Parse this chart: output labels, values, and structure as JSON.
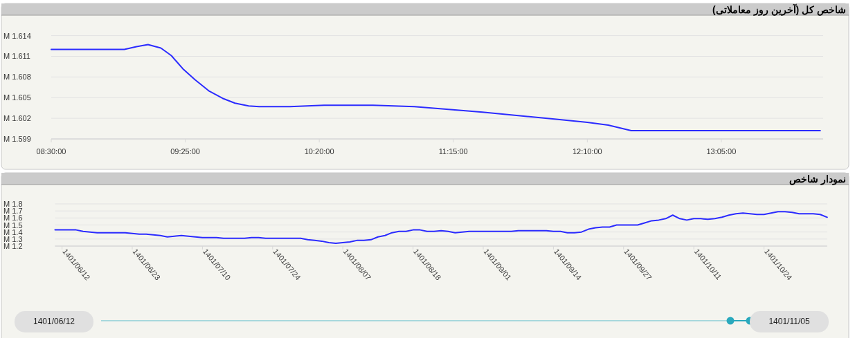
{
  "chart_data": [
    {
      "type": "line",
      "title": "شاخص کل (آخرین روز معاملاتی)",
      "x": [
        8.5,
        9.0,
        9.083,
        9.162,
        9.25,
        9.322,
        9.4,
        9.483,
        9.577,
        9.672,
        9.757,
        9.85,
        9.922,
        10.133,
        10.367,
        10.7,
        10.983,
        11.217,
        11.45,
        11.695,
        11.93,
        12.167,
        12.31,
        12.467,
        13.76
      ],
      "series": [
        {
          "color": "#2b2bff",
          "values": [
            1.612,
            1.612,
            1.6124,
            1.6127,
            1.6122,
            1.6111,
            1.6092,
            1.6076,
            1.606,
            1.6049,
            1.6042,
            1.6038,
            1.6037,
            1.6037,
            1.6039,
            1.6039,
            1.6037,
            1.6033,
            1.6029,
            1.6024,
            1.6019,
            1.6014,
            1.601,
            1.6002,
            1.6002
          ]
        }
      ],
      "xlim": [
        8.5,
        13.78
      ],
      "xticks": [
        {
          "value": 8.5,
          "label": "08:30:00"
        },
        {
          "value": 9.4167,
          "label": "09:25:00"
        },
        {
          "value": 10.3333,
          "label": "10:20:00"
        },
        {
          "value": 11.25,
          "label": "11:15:00"
        },
        {
          "value": 12.1667,
          "label": "12:10:00"
        },
        {
          "value": 13.0833,
          "label": "13:05:00"
        }
      ],
      "ylim": [
        1.599,
        1.614
      ],
      "yticks": [
        {
          "value": 1.599,
          "label": "1.599 M"
        },
        {
          "value": 1.602,
          "label": "1.602 M"
        },
        {
          "value": 1.605,
          "label": "1.605 M"
        },
        {
          "value": 1.608,
          "label": "1.608 M"
        },
        {
          "value": 1.611,
          "label": "1.611 M"
        },
        {
          "value": 1.614,
          "label": "1.614 M"
        }
      ],
      "grid": "y"
    },
    {
      "type": "line",
      "title": "نمودار شاخص",
      "categories": [
        null,
        "1401/06/12",
        null,
        null,
        null,
        null,
        null,
        null,
        null,
        null,
        null,
        "1401/06/23",
        null,
        null,
        null,
        null,
        null,
        null,
        null,
        null,
        null,
        "1401/07/10",
        null,
        null,
        null,
        null,
        null,
        null,
        null,
        null,
        null,
        "1401/07/24",
        null,
        null,
        null,
        null,
        null,
        null,
        null,
        null,
        null,
        "1401/08/07",
        null,
        null,
        null,
        null,
        null,
        null,
        null,
        null,
        null,
        "1401/08/18",
        null,
        null,
        null,
        null,
        null,
        null,
        null,
        null,
        null,
        "1401/09/01",
        null,
        null,
        null,
        null,
        null,
        null,
        null,
        null,
        null,
        "1401/09/14",
        null,
        null,
        null,
        null,
        null,
        null,
        null,
        null,
        null,
        "1401/09/27",
        null,
        null,
        null,
        null,
        null,
        null,
        null,
        null,
        null,
        "1401/10/11",
        null,
        null,
        null,
        null,
        null,
        null,
        null,
        null,
        null,
        "1401/10/24",
        null,
        null,
        null,
        null,
        null,
        null,
        null,
        null,
        null
      ],
      "series": [
        {
          "color": "#2b2bff",
          "values": [
            1.43,
            1.43,
            1.43,
            1.43,
            1.41,
            1.4,
            1.39,
            1.39,
            1.39,
            1.39,
            1.39,
            1.38,
            1.37,
            1.37,
            1.36,
            1.35,
            1.33,
            1.34,
            1.35,
            1.34,
            1.33,
            1.32,
            1.32,
            1.32,
            1.31,
            1.31,
            1.31,
            1.31,
            1.32,
            1.32,
            1.31,
            1.31,
            1.31,
            1.31,
            1.31,
            1.31,
            1.29,
            1.28,
            1.27,
            1.25,
            1.24,
            1.25,
            1.26,
            1.28,
            1.28,
            1.29,
            1.33,
            1.35,
            1.39,
            1.41,
            1.41,
            1.43,
            1.43,
            1.41,
            1.41,
            1.42,
            1.41,
            1.39,
            1.4,
            1.41,
            1.41,
            1.41,
            1.41,
            1.41,
            1.41,
            1.41,
            1.42,
            1.42,
            1.42,
            1.42,
            1.42,
            1.41,
            1.41,
            1.39,
            1.39,
            1.4,
            1.44,
            1.46,
            1.47,
            1.47,
            1.5,
            1.5,
            1.5,
            1.5,
            1.53,
            1.56,
            1.57,
            1.59,
            1.64,
            1.59,
            1.57,
            1.59,
            1.59,
            1.58,
            1.59,
            1.61,
            1.64,
            1.66,
            1.67,
            1.66,
            1.65,
            1.65,
            1.67,
            1.69,
            1.69,
            1.68,
            1.66,
            1.66,
            1.66,
            1.65,
            1.61
          ]
        }
      ],
      "ylim": [
        1.2,
        1.8
      ],
      "yticks": [
        {
          "value": 1.2,
          "label": "1.2 M"
        },
        {
          "value": 1.3,
          "label": "1.3 M"
        },
        {
          "value": 1.4,
          "label": "1.4 M"
        },
        {
          "value": 1.5,
          "label": "1.5 M"
        },
        {
          "value": 1.6,
          "label": "1.6 M"
        },
        {
          "value": 1.7,
          "label": "1.7 M"
        },
        {
          "value": 1.8,
          "label": "1.8 M"
        }
      ],
      "grid": "y",
      "annotations": [
        "1401/06/12",
        "1401/11/05"
      ]
    }
  ]
}
